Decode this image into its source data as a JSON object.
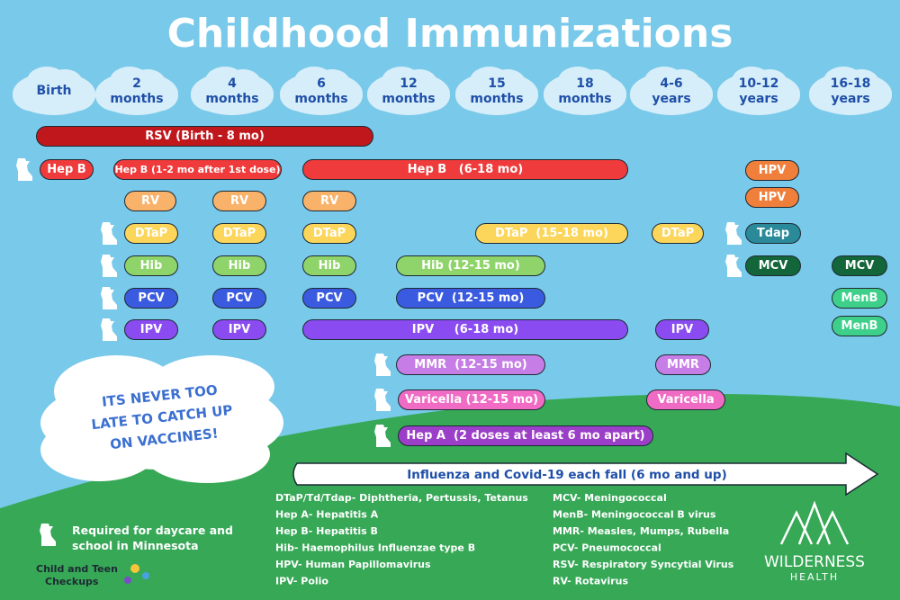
{
  "title": "Childhood Immunizations",
  "ages": [
    [
      "Birth"
    ],
    [
      "2",
      "months"
    ],
    [
      "4",
      "months"
    ],
    [
      "6",
      "months"
    ],
    [
      "12",
      "months"
    ],
    [
      "15",
      "months"
    ],
    [
      "18",
      "months"
    ],
    [
      "4-6",
      "years"
    ],
    [
      "10-12",
      "years"
    ],
    [
      "16-18",
      "years"
    ]
  ],
  "vaccines": [
    "RSV (Birth - 8 mo)",
    "Hep B",
    "Hep B (1-2 mo after 1st dose)",
    "Hep B   (6-18 mo)",
    "RV",
    "RV",
    "RV",
    "DTaP",
    "DTaP",
    "DTaP",
    "DTaP  (15-18 mo)",
    "DTaP",
    "Hib",
    "Hib",
    "Hib",
    "Hib (12-15 mo)",
    "PCV",
    "PCV",
    "PCV",
    "PCV  (12-15 mo)",
    "IPV",
    "IPV",
    "IPV     (6-18 mo)",
    "IPV",
    "MMR  (12-15 mo)",
    "MMR",
    "Varicella (12-15 mo)",
    "Varicella",
    "Hep A  (2 doses at least 6 mo apart)",
    "HPV",
    "HPV",
    "Tdap",
    "MCV",
    "MCV",
    "MenB",
    "MenB"
  ],
  "callout": [
    "ITS NEVER TOO",
    "LATE TO CATCH UP",
    "ON VACCINES!"
  ],
  "banner": "Influenza and Covid-19 each fall (6 mo and up)",
  "legend": {
    "left": [
      "DTaP/Td/Tdap- Diphtheria, Pertussis, Tetanus",
      "Hep A- Hepatitis A",
      "Hep B- Hepatitis B",
      "Hib- Haemophilus Influenzae type B",
      "HPV- Human Papillomavirus",
      "IPV- Polio"
    ],
    "right": [
      "MCV- Meningococcal",
      "MenB- Meningococcal B virus",
      "MMR- Measles, Mumps, Rubella",
      "PCV- Pneumococcal",
      "RSV- Respiratory Syncytial Virus",
      "RV- Rotavirus"
    ]
  },
  "required_note": [
    "Required for daycare and",
    "school in Minnesota"
  ],
  "logos": {
    "checkups": [
      "Child and Teen",
      "Checkups"
    ],
    "wilderness": [
      "WILDERNESS",
      "HEALTH"
    ]
  }
}
